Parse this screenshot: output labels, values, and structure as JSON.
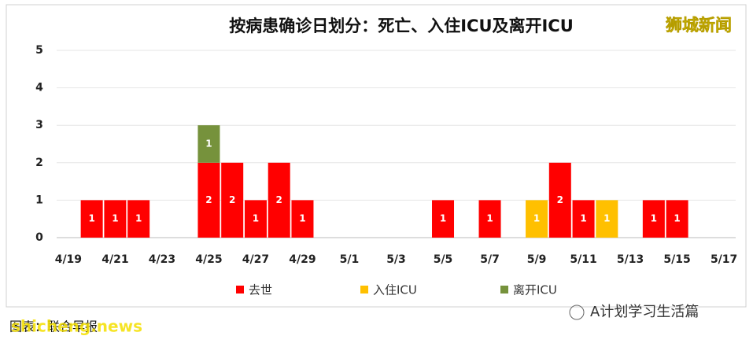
{
  "chart_data": {
    "type": "bar",
    "stacked": true,
    "title": "按病患确诊日划分：死亡、入住ICU及离开ICU",
    "watermark": "狮城新闻",
    "source": "图表：联合早报",
    "site": "shicheng.news",
    "credit": "A计划学习生活篇",
    "categories": [
      "4/19",
      null,
      "4/21",
      null,
      "4/23",
      null,
      "4/25",
      null,
      "4/27",
      null,
      "4/29",
      null,
      "5/1",
      null,
      "5/3",
      null,
      "5/5",
      null,
      "5/7",
      null,
      "5/9",
      null,
      "5/11",
      null,
      "5/13",
      null,
      "5/15",
      null,
      "5/17"
    ],
    "series": [
      {
        "name": "去世",
        "color": "#ff0000",
        "values": [
          null,
          1,
          1,
          1,
          null,
          null,
          2,
          2,
          1,
          2,
          1,
          null,
          null,
          null,
          null,
          null,
          1,
          null,
          1,
          null,
          null,
          2,
          1,
          null,
          null,
          1,
          1,
          null,
          null
        ]
      },
      {
        "name": "入住ICU",
        "color": "#ffc000",
        "values": [
          null,
          null,
          null,
          null,
          null,
          null,
          null,
          null,
          null,
          null,
          null,
          null,
          null,
          null,
          null,
          null,
          null,
          null,
          null,
          null,
          1,
          null,
          null,
          1,
          null,
          null,
          null,
          null,
          null
        ]
      },
      {
        "name": "离开ICU",
        "color": "#76923c",
        "values": [
          null,
          null,
          null,
          null,
          null,
          null,
          1,
          null,
          null,
          null,
          null,
          null,
          null,
          null,
          null,
          null,
          null,
          null,
          null,
          null,
          null,
          null,
          null,
          null,
          null,
          null,
          null,
          null,
          null
        ]
      }
    ],
    "ylim": [
      0,
      5
    ],
    "yticks": [
      0,
      1,
      2,
      3,
      4,
      5
    ],
    "grid": true,
    "legend": "bottom"
  }
}
